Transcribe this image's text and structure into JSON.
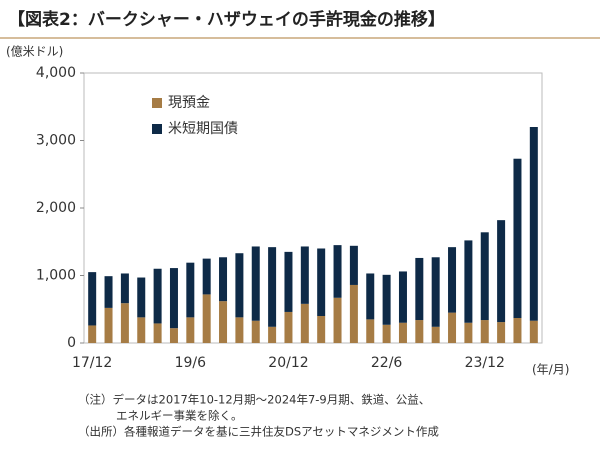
{
  "chart_data": {
    "type": "stacked_bar",
    "title": "【図表2：バークシャー・ハザウェイの手許現金の推移】",
    "y_unit": "(億米ドル)",
    "x_unit": "(年/月)",
    "categories": [
      "17/12",
      null,
      null,
      null,
      null,
      null,
      "19/6",
      null,
      null,
      null,
      null,
      null,
      "20/12",
      null,
      null,
      null,
      null,
      null,
      "22/6",
      null,
      null,
      null,
      null,
      null,
      "23/12",
      null,
      null,
      null
    ],
    "series": [
      {
        "name": "現預金",
        "color": "#a67c45",
        "values": [
          260,
          520,
          590,
          380,
          290,
          220,
          380,
          720,
          620,
          380,
          330,
          240,
          460,
          580,
          400,
          670,
          860,
          350,
          270,
          300,
          340,
          240,
          450,
          300,
          340,
          310,
          370,
          330
        ]
      },
      {
        "name": "米短期国債",
        "color": "#0e2a47",
        "values": [
          790,
          470,
          440,
          590,
          810,
          890,
          810,
          530,
          650,
          950,
          1100,
          1180,
          890,
          850,
          1000,
          780,
          580,
          680,
          740,
          760,
          920,
          1030,
          970,
          1220,
          1300,
          1510,
          2360,
          2870
        ]
      }
    ],
    "ylim": [
      0,
      4000
    ],
    "yticks": [
      0,
      {
        "value": 1000,
        "label": "1,000"
      },
      {
        "value": 2000,
        "label": "2,000"
      },
      {
        "value": 3000,
        "label": "3,000"
      },
      {
        "value": 4000,
        "label": "4,000"
      }
    ],
    "grid": false,
    "legend": "top-left",
    "notes": [
      "（注）データは2017年10-12月期～2024年7-9月期、鉄道、公益、",
      "エネルギー事業を除く。",
      "（出所）各種報道データを基に三井住友DSアセットマネジメント作成"
    ]
  }
}
